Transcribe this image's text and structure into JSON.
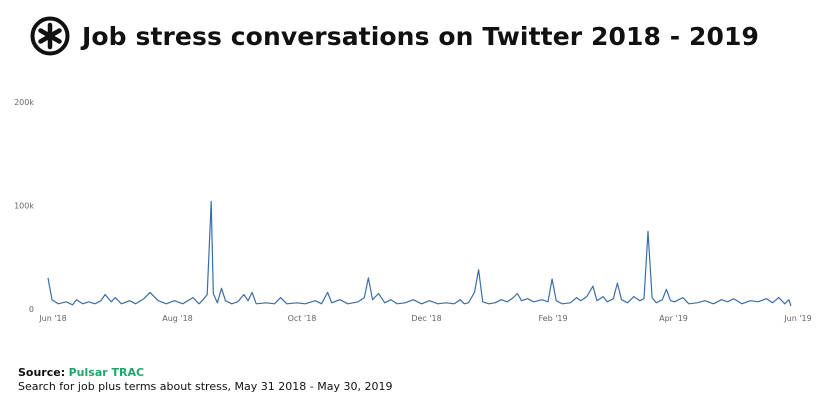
{
  "title": "Job stress conversations on Twitter 2018 - 2019",
  "logo_icon": "pulsar-asterisk-icon",
  "colors": {
    "line": "#3b6ea8",
    "source": "#1ea56a",
    "text": "#111111"
  },
  "footer": {
    "source_label": "Source:",
    "source_value": "Pulsar TRAC",
    "description": "Search for job plus terms about stress, May 31 2018 - May 30, 2019"
  },
  "chart_data": {
    "type": "line",
    "title": "Job stress conversations on Twitter 2018 - 2019",
    "xlabel": "",
    "ylabel": "",
    "ylim": [
      0,
      200000
    ],
    "grid": false,
    "legend": "none",
    "y_ticks": [
      {
        "value": 0,
        "label": "0"
      },
      {
        "value": 100000,
        "label": "100k"
      },
      {
        "value": 200000,
        "label": "200k"
      }
    ],
    "x_ticks": [
      {
        "date": "2018-06-01",
        "label": "Jun '18"
      },
      {
        "date": "2018-08-01",
        "label": "Aug '18"
      },
      {
        "date": "2018-10-01",
        "label": "Oct '18"
      },
      {
        "date": "2018-12-01",
        "label": "Dec '18"
      },
      {
        "date": "2019-02-01",
        "label": "Feb '19"
      },
      {
        "date": "2019-04-01",
        "label": "Apr '19"
      },
      {
        "date": "2019-06-01",
        "label": "Jun '19"
      }
    ],
    "series": [
      {
        "points": [
          [
            "2018-05-31",
            30000
          ],
          [
            "2018-06-02",
            9000
          ],
          [
            "2018-06-05",
            5000
          ],
          [
            "2018-06-09",
            7000
          ],
          [
            "2018-06-12",
            4000
          ],
          [
            "2018-06-14",
            9000
          ],
          [
            "2018-06-17",
            5000
          ],
          [
            "2018-06-20",
            7000
          ],
          [
            "2018-06-23",
            5000
          ],
          [
            "2018-06-26",
            8000
          ],
          [
            "2018-06-28",
            14000
          ],
          [
            "2018-07-01",
            7000
          ],
          [
            "2018-07-03",
            11000
          ],
          [
            "2018-07-06",
            5000
          ],
          [
            "2018-07-10",
            8000
          ],
          [
            "2018-07-13",
            5000
          ],
          [
            "2018-07-17",
            10000
          ],
          [
            "2018-07-20",
            16000
          ],
          [
            "2018-07-24",
            8000
          ],
          [
            "2018-07-28",
            5000
          ],
          [
            "2018-08-01",
            8000
          ],
          [
            "2018-08-05",
            5000
          ],
          [
            "2018-08-10",
            11000
          ],
          [
            "2018-08-13",
            5000
          ],
          [
            "2018-08-15",
            9000
          ],
          [
            "2018-08-17",
            14000
          ],
          [
            "2018-08-19",
            104000
          ],
          [
            "2018-08-20",
            15000
          ],
          [
            "2018-08-22",
            6000
          ],
          [
            "2018-08-24",
            20000
          ],
          [
            "2018-08-26",
            8000
          ],
          [
            "2018-08-29",
            5000
          ],
          [
            "2018-09-01",
            7000
          ],
          [
            "2018-09-04",
            14000
          ],
          [
            "2018-09-06",
            8000
          ],
          [
            "2018-09-08",
            16000
          ],
          [
            "2018-09-10",
            5000
          ],
          [
            "2018-09-15",
            6000
          ],
          [
            "2018-09-19",
            5000
          ],
          [
            "2018-09-22",
            11000
          ],
          [
            "2018-09-25",
            5000
          ],
          [
            "2018-09-30",
            6000
          ],
          [
            "2018-10-04",
            5000
          ],
          [
            "2018-10-09",
            8000
          ],
          [
            "2018-10-12",
            5000
          ],
          [
            "2018-10-15",
            16000
          ],
          [
            "2018-10-17",
            6000
          ],
          [
            "2018-10-21",
            9000
          ],
          [
            "2018-10-25",
            5000
          ],
          [
            "2018-10-30",
            7000
          ],
          [
            "2018-11-02",
            11000
          ],
          [
            "2018-11-04",
            30000
          ],
          [
            "2018-11-06",
            9000
          ],
          [
            "2018-11-09",
            15000
          ],
          [
            "2018-11-12",
            6000
          ],
          [
            "2018-11-15",
            9000
          ],
          [
            "2018-11-18",
            5000
          ],
          [
            "2018-11-22",
            6000
          ],
          [
            "2018-11-26",
            9000
          ],
          [
            "2018-11-30",
            5000
          ],
          [
            "2018-12-04",
            8000
          ],
          [
            "2018-12-08",
            5000
          ],
          [
            "2018-12-12",
            6000
          ],
          [
            "2018-12-16",
            5000
          ],
          [
            "2018-12-19",
            9000
          ],
          [
            "2018-12-21",
            5000
          ],
          [
            "2018-12-23",
            6000
          ],
          [
            "2018-12-26",
            16000
          ],
          [
            "2018-12-28",
            38000
          ],
          [
            "2018-12-30",
            7000
          ],
          [
            "2019-01-02",
            5000
          ],
          [
            "2019-01-05",
            6000
          ],
          [
            "2019-01-08",
            9000
          ],
          [
            "2019-01-11",
            7000
          ],
          [
            "2019-01-14",
            11000
          ],
          [
            "2019-01-16",
            15000
          ],
          [
            "2019-01-18",
            8000
          ],
          [
            "2019-01-21",
            10000
          ],
          [
            "2019-01-24",
            7000
          ],
          [
            "2019-01-28",
            9000
          ],
          [
            "2019-01-31",
            7000
          ],
          [
            "2019-02-02",
            29000
          ],
          [
            "2019-02-04",
            8000
          ],
          [
            "2019-02-07",
            5000
          ],
          [
            "2019-02-11",
            6000
          ],
          [
            "2019-02-14",
            11000
          ],
          [
            "2019-02-16",
            8000
          ],
          [
            "2019-02-19",
            12000
          ],
          [
            "2019-02-22",
            22000
          ],
          [
            "2019-02-24",
            8000
          ],
          [
            "2019-02-27",
            12000
          ],
          [
            "2019-03-01",
            7000
          ],
          [
            "2019-03-04",
            10000
          ],
          [
            "2019-03-06",
            25000
          ],
          [
            "2019-03-08",
            9000
          ],
          [
            "2019-03-11",
            6000
          ],
          [
            "2019-03-14",
            12000
          ],
          [
            "2019-03-17",
            8000
          ],
          [
            "2019-03-19",
            10000
          ],
          [
            "2019-03-21",
            75000
          ],
          [
            "2019-03-23",
            11000
          ],
          [
            "2019-03-25",
            6000
          ],
          [
            "2019-03-28",
            9000
          ],
          [
            "2019-03-30",
            19000
          ],
          [
            "2019-04-01",
            8000
          ],
          [
            "2019-04-03",
            7000
          ],
          [
            "2019-04-07",
            11000
          ],
          [
            "2019-04-10",
            5000
          ],
          [
            "2019-04-14",
            6000
          ],
          [
            "2019-04-18",
            8000
          ],
          [
            "2019-04-22",
            5000
          ],
          [
            "2019-04-26",
            9000
          ],
          [
            "2019-04-29",
            7000
          ],
          [
            "2019-05-02",
            10000
          ],
          [
            "2019-05-06",
            5000
          ],
          [
            "2019-05-10",
            8000
          ],
          [
            "2019-05-14",
            7000
          ],
          [
            "2019-05-18",
            10000
          ],
          [
            "2019-05-21",
            6000
          ],
          [
            "2019-05-24",
            11000
          ],
          [
            "2019-05-27",
            5000
          ],
          [
            "2019-05-29",
            9000
          ],
          [
            "2019-05-30",
            3000
          ]
        ]
      }
    ]
  }
}
